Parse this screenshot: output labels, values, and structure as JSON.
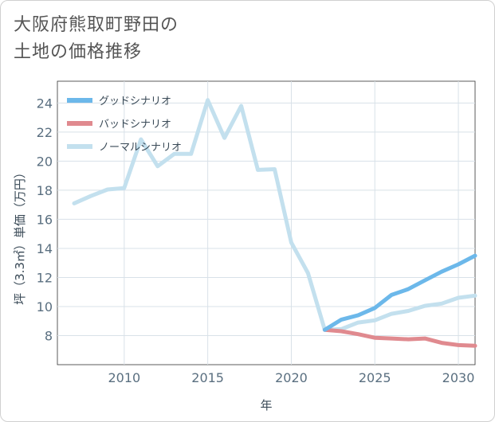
{
  "title_line1": "大阪府熊取町野田の",
  "title_line2": "土地の価格推移",
  "chart_data": {
    "type": "line",
    "xlabel": "年",
    "ylabel": "坪（3.3㎡）単価（万円）",
    "xlim": [
      2006,
      2031
    ],
    "ylim": [
      6.0,
      25.5
    ],
    "xticks": [
      2010,
      2015,
      2020,
      2025,
      2030
    ],
    "yticks": [
      8,
      10,
      12,
      14,
      16,
      18,
      20,
      22,
      24
    ],
    "grid": true,
    "legend_position": "top-left",
    "series": [
      {
        "name": "グッドシナリオ",
        "color": "#6cb8ea",
        "x": [
          2022,
          2023,
          2024,
          2025,
          2026,
          2027,
          2028,
          2029,
          2030,
          2031
        ],
        "y": [
          8.4,
          9.1,
          9.4,
          9.9,
          10.8,
          11.2,
          11.8,
          12.4,
          12.9,
          13.5
        ]
      },
      {
        "name": "バッドシナリオ",
        "color": "#e08a8f",
        "x": [
          2022,
          2023,
          2024,
          2025,
          2026,
          2027,
          2028,
          2029,
          2030,
          2031
        ],
        "y": [
          8.4,
          8.3,
          8.1,
          7.85,
          7.8,
          7.75,
          7.8,
          7.5,
          7.35,
          7.3
        ]
      },
      {
        "name": "ノーマルシナリオ",
        "color": "#c3e0ee",
        "x": [
          2007,
          2008,
          2009,
          2010,
          2011,
          2012,
          2013,
          2014,
          2015,
          2016,
          2017,
          2018,
          2019,
          2020,
          2021,
          2022,
          2023,
          2024,
          2025,
          2026,
          2027,
          2028,
          2029,
          2030,
          2031
        ],
        "y": [
          17.1,
          17.6,
          18.05,
          18.15,
          21.5,
          19.65,
          20.5,
          20.5,
          24.2,
          21.6,
          23.8,
          19.4,
          19.45,
          14.4,
          12.3,
          8.4,
          8.45,
          8.9,
          9.05,
          9.5,
          9.7,
          10.05,
          10.2,
          10.6,
          10.75
        ]
      }
    ]
  }
}
